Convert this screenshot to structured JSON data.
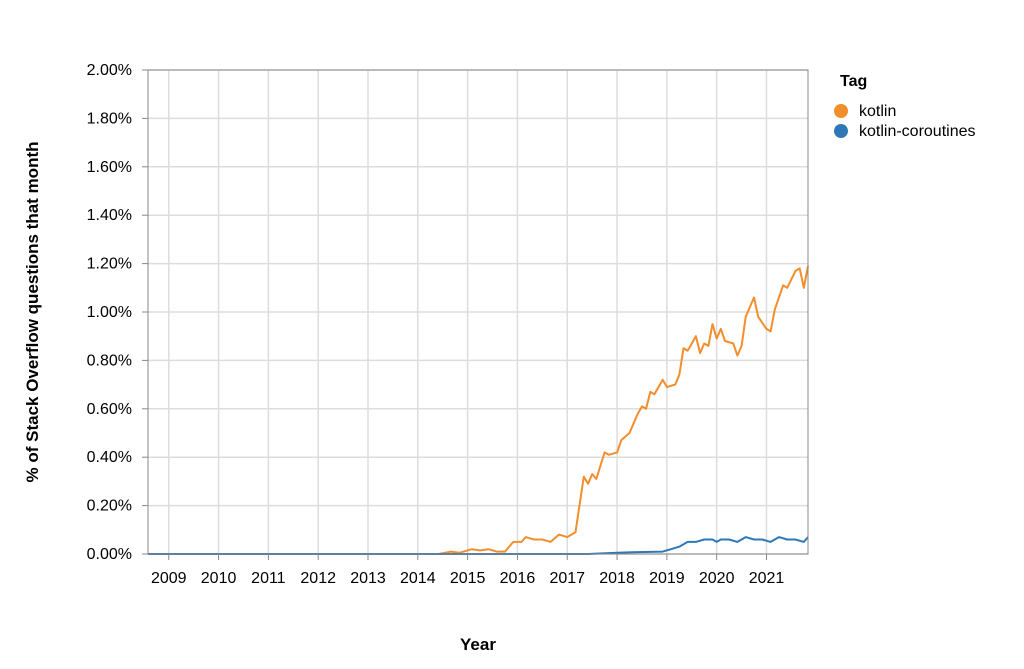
{
  "chart_data": {
    "type": "line",
    "xlabel": "Year",
    "ylabel": "% of Stack Overflow questions that month",
    "x_start": "2008-08",
    "x_end": "2021-11",
    "x_ticks": [
      "2009",
      "2010",
      "2011",
      "2012",
      "2013",
      "2014",
      "2015",
      "2016",
      "2017",
      "2018",
      "2019",
      "2020",
      "2021"
    ],
    "ylim": [
      0,
      2.0
    ],
    "y_ticks": [
      "0.00%",
      "0.20%",
      "0.40%",
      "0.60%",
      "0.80%",
      "1.00%",
      "1.20%",
      "1.40%",
      "1.60%",
      "1.80%",
      "2.00%"
    ],
    "grid": true,
    "legend": {
      "title": "Tag",
      "placement": "right"
    },
    "series": [
      {
        "name": "kotlin",
        "color": "#f28e2b",
        "points": [
          [
            "2008-08",
            0.0
          ],
          [
            "2014-06",
            0.0
          ],
          [
            "2014-09",
            0.01
          ],
          [
            "2014-11",
            0.005
          ],
          [
            "2015-02",
            0.02
          ],
          [
            "2015-04",
            0.015
          ],
          [
            "2015-06",
            0.02
          ],
          [
            "2015-08",
            0.01
          ],
          [
            "2015-10",
            0.01
          ],
          [
            "2015-12",
            0.05
          ],
          [
            "2016-02",
            0.05
          ],
          [
            "2016-03",
            0.07
          ],
          [
            "2016-05",
            0.06
          ],
          [
            "2016-07",
            0.06
          ],
          [
            "2016-09",
            0.05
          ],
          [
            "2016-11",
            0.08
          ],
          [
            "2017-01",
            0.07
          ],
          [
            "2017-03",
            0.09
          ],
          [
            "2017-05",
            0.32
          ],
          [
            "2017-06",
            0.29
          ],
          [
            "2017-07",
            0.33
          ],
          [
            "2017-08",
            0.31
          ],
          [
            "2017-10",
            0.42
          ],
          [
            "2017-11",
            0.41
          ],
          [
            "2018-01",
            0.42
          ],
          [
            "2018-02",
            0.47
          ],
          [
            "2018-04",
            0.5
          ],
          [
            "2018-06",
            0.58
          ],
          [
            "2018-07",
            0.61
          ],
          [
            "2018-08",
            0.6
          ],
          [
            "2018-09",
            0.67
          ],
          [
            "2018-10",
            0.66
          ],
          [
            "2018-12",
            0.72
          ],
          [
            "2019-01",
            0.69
          ],
          [
            "2019-03",
            0.7
          ],
          [
            "2019-04",
            0.74
          ],
          [
            "2019-05",
            0.85
          ],
          [
            "2019-06",
            0.84
          ],
          [
            "2019-07",
            0.87
          ],
          [
            "2019-08",
            0.9
          ],
          [
            "2019-09",
            0.83
          ],
          [
            "2019-10",
            0.87
          ],
          [
            "2019-11",
            0.86
          ],
          [
            "2019-12",
            0.95
          ],
          [
            "2020-01",
            0.89
          ],
          [
            "2020-02",
            0.93
          ],
          [
            "2020-03",
            0.88
          ],
          [
            "2020-05",
            0.87
          ],
          [
            "2020-06",
            0.82
          ],
          [
            "2020-07",
            0.86
          ],
          [
            "2020-08",
            0.98
          ],
          [
            "2020-10",
            1.06
          ],
          [
            "2020-11",
            0.98
          ],
          [
            "2021-01",
            0.93
          ],
          [
            "2021-02",
            0.92
          ],
          [
            "2021-03",
            1.01
          ],
          [
            "2021-05",
            1.11
          ],
          [
            "2021-06",
            1.1
          ],
          [
            "2021-08",
            1.17
          ],
          [
            "2021-09",
            1.18
          ],
          [
            "2021-10",
            1.1
          ],
          [
            "2021-11",
            1.19
          ]
        ]
      },
      {
        "name": "kotlin-coroutines",
        "color": "#2e78b7",
        "points": [
          [
            "2008-08",
            0.0
          ],
          [
            "2017-06",
            0.0
          ],
          [
            "2018-01",
            0.005
          ],
          [
            "2018-06",
            0.008
          ],
          [
            "2018-12",
            0.01
          ],
          [
            "2019-02",
            0.02
          ],
          [
            "2019-04",
            0.03
          ],
          [
            "2019-06",
            0.05
          ],
          [
            "2019-08",
            0.05
          ],
          [
            "2019-10",
            0.06
          ],
          [
            "2019-12",
            0.06
          ],
          [
            "2020-01",
            0.05
          ],
          [
            "2020-02",
            0.06
          ],
          [
            "2020-04",
            0.06
          ],
          [
            "2020-06",
            0.05
          ],
          [
            "2020-08",
            0.07
          ],
          [
            "2020-10",
            0.06
          ],
          [
            "2020-12",
            0.06
          ],
          [
            "2021-02",
            0.05
          ],
          [
            "2021-04",
            0.07
          ],
          [
            "2021-06",
            0.06
          ],
          [
            "2021-08",
            0.06
          ],
          [
            "2021-10",
            0.05
          ],
          [
            "2021-11",
            0.07
          ]
        ]
      }
    ]
  }
}
